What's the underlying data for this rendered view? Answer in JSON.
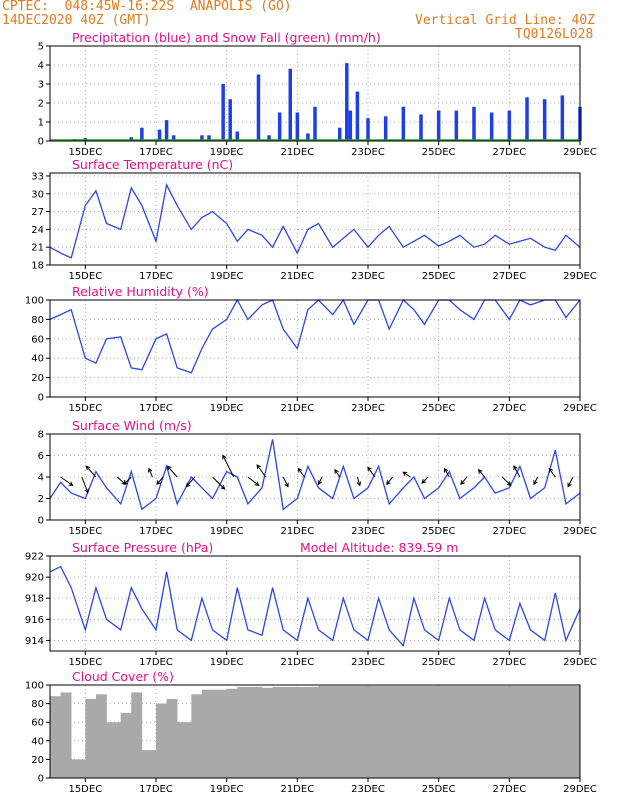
{
  "header": {
    "source": "CPTEC:",
    "coords": "048:45W-16:22S",
    "location": "ANAPOLIS (GO)",
    "init": "14DEC2020 40Z (GMT)",
    "grid_note": "Vertical Grid Line: 40Z",
    "model": "TQ0126L028"
  },
  "colors": {
    "header": "#e07a1f",
    "title": "#e0108c",
    "line": "#2b47e6",
    "precip": "#1f3fe6",
    "snow": "#1aa01a",
    "cloud": "#a9a9a9"
  },
  "x_ticks": [
    "15DEC",
    "17DEC",
    "19DEC",
    "21DEC",
    "23DEC",
    "25DEC",
    "27DEC",
    "29DEC"
  ],
  "chart_data": [
    {
      "id": "precip",
      "type": "bar",
      "title": "Precipitation (blue) and Snow Fall (green) (mm/h)",
      "ylim": [
        0,
        5
      ],
      "yticks": [
        0,
        1,
        2,
        3,
        4,
        5
      ],
      "grid": true,
      "x": [
        14.7,
        15.0,
        16.3,
        16.6,
        17.1,
        17.3,
        17.5,
        18.3,
        18.5,
        18.9,
        19.1,
        19.3,
        19.9,
        20.2,
        20.5,
        20.8,
        21.0,
        21.3,
        21.5,
        22.2,
        22.4,
        22.5,
        22.7,
        23.0,
        23.5,
        24.0,
        24.5,
        25.0,
        25.5,
        26.0,
        26.5,
        27.0,
        27.5,
        28.0,
        28.5,
        29.0
      ],
      "series": [
        {
          "name": "Precipitation",
          "values": [
            0.1,
            0.15,
            0.2,
            0.7,
            0.6,
            1.1,
            0.3,
            0.3,
            0.3,
            3.0,
            2.2,
            0.5,
            3.5,
            0.3,
            1.5,
            3.8,
            1.5,
            0.4,
            1.8,
            0.7,
            4.1,
            1.6,
            2.6,
            1.2,
            1.3,
            1.8,
            1.4,
            1.6,
            1.6,
            1.8,
            1.5,
            1.6,
            2.3,
            2.2,
            2.4,
            1.8
          ]
        },
        {
          "name": "Snow Fall",
          "values": [
            0,
            0,
            0,
            0,
            0,
            0,
            0,
            0,
            0,
            0,
            0,
            0,
            0,
            0,
            0,
            0,
            0,
            0,
            0,
            0,
            0,
            0,
            0,
            0,
            0,
            0,
            0,
            0,
            0,
            0,
            0,
            0,
            0,
            0,
            0,
            0
          ]
        }
      ]
    },
    {
      "id": "temp",
      "type": "line",
      "title": "Surface Temperature (nC)",
      "ylim": [
        18,
        33.5
      ],
      "yticks": [
        18,
        21,
        24,
        27,
        30,
        33
      ],
      "grid": true,
      "x": [
        14.0,
        14.3,
        14.6,
        15.0,
        15.3,
        15.6,
        16.0,
        16.3,
        16.6,
        17.0,
        17.3,
        17.6,
        18.0,
        18.3,
        18.6,
        19.0,
        19.3,
        19.6,
        20.0,
        20.3,
        20.6,
        21.0,
        21.3,
        21.6,
        22.0,
        22.3,
        22.6,
        23.0,
        23.3,
        23.6,
        24.0,
        24.3,
        24.6,
        25.0,
        25.3,
        25.6,
        26.0,
        26.3,
        26.6,
        27.0,
        27.3,
        27.6,
        28.0,
        28.3,
        28.6,
        29.0
      ],
      "series": [
        {
          "name": "Temperature",
          "values": [
            21,
            20,
            19.2,
            28,
            30.5,
            25,
            24,
            31,
            28,
            22,
            31.5,
            28,
            24,
            26,
            27,
            25,
            22,
            24,
            23,
            21,
            24.5,
            20,
            24,
            25,
            21,
            22.5,
            24,
            21,
            23,
            24.5,
            21,
            22,
            23,
            21.2,
            22,
            23,
            21,
            21.5,
            23,
            21.5,
            22,
            22.5,
            21,
            20.5,
            23,
            21
          ]
        }
      ]
    },
    {
      "id": "rh",
      "type": "line",
      "title": "Relative Humidity (%)",
      "ylim": [
        0,
        100
      ],
      "yticks": [
        0,
        20,
        40,
        60,
        80,
        100
      ],
      "grid": true,
      "x": [
        14.0,
        14.3,
        14.6,
        15.0,
        15.3,
        15.6,
        16.0,
        16.3,
        16.6,
        17.0,
        17.3,
        17.6,
        18.0,
        18.3,
        18.6,
        19.0,
        19.3,
        19.6,
        20.0,
        20.3,
        20.6,
        21.0,
        21.3,
        21.6,
        22.0,
        22.3,
        22.6,
        23.0,
        23.3,
        23.6,
        24.0,
        24.3,
        24.6,
        25.0,
        25.3,
        25.6,
        26.0,
        26.3,
        26.6,
        27.0,
        27.3,
        27.6,
        28.0,
        28.3,
        28.6,
        29.0
      ],
      "series": [
        {
          "name": "Humidity",
          "values": [
            80,
            85,
            90,
            40,
            35,
            60,
            62,
            30,
            28,
            60,
            65,
            30,
            25,
            50,
            70,
            80,
            100,
            80,
            95,
            100,
            70,
            50,
            90,
            100,
            85,
            100,
            75,
            100,
            100,
            70,
            100,
            90,
            75,
            100,
            100,
            90,
            80,
            100,
            100,
            80,
            100,
            95,
            100,
            100,
            82,
            100
          ]
        }
      ]
    },
    {
      "id": "wind",
      "type": "line",
      "title": "Surface Wind (m/s)",
      "ylim": [
        0,
        8
      ],
      "yticks": [
        0,
        2,
        4,
        6,
        8
      ],
      "grid": true,
      "x": [
        14.0,
        14.3,
        14.6,
        15.0,
        15.3,
        15.6,
        16.0,
        16.3,
        16.6,
        17.0,
        17.3,
        17.6,
        18.0,
        18.3,
        18.6,
        19.0,
        19.3,
        19.6,
        20.0,
        20.3,
        20.6,
        21.0,
        21.3,
        21.6,
        22.0,
        22.3,
        22.6,
        23.0,
        23.3,
        23.6,
        24.0,
        24.3,
        24.6,
        25.0,
        25.3,
        25.6,
        26.0,
        26.3,
        26.6,
        27.0,
        27.3,
        27.6,
        28.0,
        28.3,
        28.6,
        29.0
      ],
      "series": [
        {
          "name": "Wind speed",
          "values": [
            2,
            3.5,
            2.5,
            2,
            4.5,
            3,
            1.5,
            4.5,
            1,
            2,
            5,
            1.5,
            4,
            3,
            2,
            4.5,
            4,
            1.5,
            3,
            7.5,
            1,
            2,
            5,
            3,
            2,
            5,
            2,
            3,
            5,
            1.5,
            3,
            4,
            2,
            3,
            4.5,
            2,
            3,
            4,
            2.5,
            3,
            5,
            2,
            3,
            6.5,
            1.5,
            2.5
          ]
        }
      ]
    },
    {
      "id": "pressure",
      "type": "line",
      "title": "Surface Pressure (hPa)",
      "subtitle": "Model Altitude: 839.59 m",
      "ylim": [
        913,
        922
      ],
      "yticks": [
        914,
        916,
        918,
        920,
        922
      ],
      "grid": true,
      "x": [
        14.0,
        14.3,
        14.6,
        15.0,
        15.3,
        15.6,
        16.0,
        16.3,
        16.6,
        17.0,
        17.3,
        17.6,
        18.0,
        18.3,
        18.6,
        19.0,
        19.3,
        19.6,
        20.0,
        20.3,
        20.6,
        21.0,
        21.3,
        21.6,
        22.0,
        22.3,
        22.6,
        23.0,
        23.3,
        23.6,
        24.0,
        24.3,
        24.6,
        25.0,
        25.3,
        25.6,
        26.0,
        26.3,
        26.6,
        27.0,
        27.3,
        27.6,
        28.0,
        28.3,
        28.6,
        29.0
      ],
      "series": [
        {
          "name": "Pressure",
          "values": [
            920.5,
            921,
            919,
            915,
            919,
            916,
            915,
            919,
            917,
            915,
            920.5,
            915,
            914,
            918,
            915,
            914,
            919,
            915,
            914.5,
            919,
            915,
            914,
            918,
            915,
            914,
            918,
            915,
            914,
            918,
            915,
            913.5,
            918,
            915,
            914,
            918,
            915,
            914,
            918,
            915,
            914,
            917.5,
            915,
            914,
            918.5,
            914,
            917
          ]
        }
      ]
    },
    {
      "id": "cloud",
      "type": "bar",
      "title": "Cloud Cover (%)",
      "ylim": [
        0,
        100
      ],
      "yticks": [
        0,
        20,
        40,
        60,
        80,
        100
      ],
      "grid": true,
      "x": [
        14.0,
        14.3,
        14.6,
        15.0,
        15.3,
        15.6,
        16.0,
        16.3,
        16.6,
        17.0,
        17.3,
        17.6,
        18.0,
        18.3,
        18.6,
        19.0,
        19.3,
        19.6,
        20.0,
        20.3,
        20.6,
        21.0,
        21.3,
        21.6,
        22.0,
        22.3,
        22.6,
        23.0,
        23.3,
        23.6,
        24.0,
        24.3,
        24.6,
        25.0,
        25.3,
        25.6,
        26.0,
        26.3,
        26.6,
        27.0,
        27.3,
        27.6,
        28.0,
        28.3,
        28.6,
        29.0
      ],
      "series": [
        {
          "name": "Cloud cover",
          "values": [
            88,
            92,
            20,
            85,
            90,
            60,
            70,
            92,
            30,
            80,
            85,
            60,
            90,
            95,
            95,
            96,
            98,
            98,
            97,
            98,
            98,
            98,
            98,
            99,
            99,
            99,
            99,
            99,
            99,
            99,
            99,
            99,
            99,
            99,
            99,
            99,
            99,
            99,
            99,
            99,
            99,
            99,
            99,
            99,
            99,
            99
          ]
        }
      ]
    }
  ],
  "wind_arrows": [
    {
      "x": 14.3,
      "dx": 1.0,
      "dy": 0.7
    },
    {
      "x": 14.9,
      "dx": 0.5,
      "dy": 1.3
    },
    {
      "x": 15.3,
      "dx": -0.8,
      "dy": -0.9
    },
    {
      "x": 15.9,
      "dx": 0.7,
      "dy": 0.6
    },
    {
      "x": 16.3,
      "dx": -0.6,
      "dy": 0.6
    },
    {
      "x": 16.9,
      "dx": -0.3,
      "dy": -0.7
    },
    {
      "x": 17.2,
      "dx": -0.5,
      "dy": 0.6
    },
    {
      "x": 17.6,
      "dx": -0.8,
      "dy": -0.9
    },
    {
      "x": 18.1,
      "dx": -0.7,
      "dy": 0.8
    },
    {
      "x": 18.6,
      "dx": 1.0,
      "dy": 1.0
    },
    {
      "x": 19.2,
      "dx": -0.9,
      "dy": -1.8
    },
    {
      "x": 19.6,
      "dx": 0.9,
      "dy": 0.7
    },
    {
      "x": 20.1,
      "dx": -0.7,
      "dy": -1.0
    },
    {
      "x": 20.6,
      "dx": 0.4,
      "dy": 0.8
    },
    {
      "x": 21.2,
      "dx": -0.5,
      "dy": -0.7
    },
    {
      "x": 21.7,
      "dx": -0.3,
      "dy": 0.6
    },
    {
      "x": 22.2,
      "dx": -0.4,
      "dy": -0.6
    },
    {
      "x": 22.7,
      "dx": 0.2,
      "dy": 0.7
    },
    {
      "x": 23.2,
      "dx": -0.6,
      "dy": -0.8
    },
    {
      "x": 23.7,
      "dx": -0.5,
      "dy": 0.6
    },
    {
      "x": 24.2,
      "dx": -0.6,
      "dy": -0.4
    },
    {
      "x": 24.7,
      "dx": -0.5,
      "dy": 0.5
    },
    {
      "x": 25.3,
      "dx": -0.4,
      "dy": -0.7
    },
    {
      "x": 25.8,
      "dx": -0.5,
      "dy": 0.6
    },
    {
      "x": 26.3,
      "dx": -0.5,
      "dy": -0.6
    },
    {
      "x": 26.8,
      "dx": 0.7,
      "dy": 0.7
    },
    {
      "x": 27.3,
      "dx": -0.5,
      "dy": -0.9
    },
    {
      "x": 27.8,
      "dx": -0.3,
      "dy": 0.6
    },
    {
      "x": 28.3,
      "dx": -0.5,
      "dy": -0.7
    },
    {
      "x": 28.8,
      "dx": -0.4,
      "dy": 0.8
    }
  ]
}
